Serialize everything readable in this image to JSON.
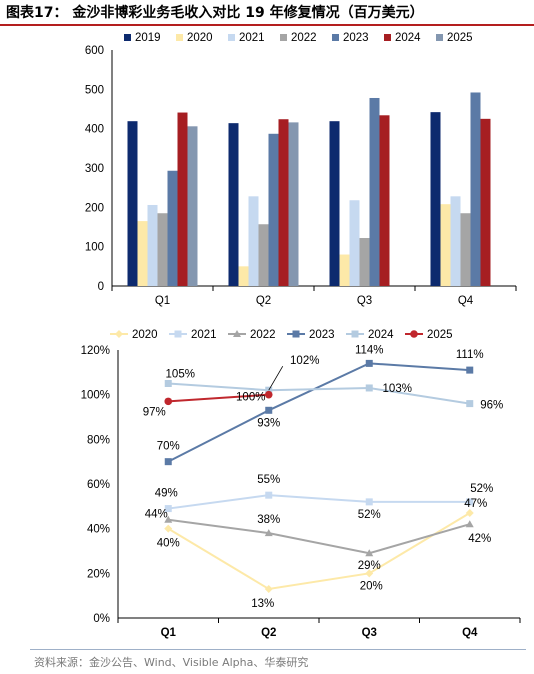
{
  "title": "图表17： 金沙非博彩业务毛收入对比 19 年修复情况（百万美元）",
  "source": "资料来源：金沙公告、Wind、Visible Alpha、华泰研究",
  "chart_data": [
    {
      "type": "bar",
      "categories": [
        "Q1",
        "Q2",
        "Q3",
        "Q4"
      ],
      "ylim": [
        0,
        600
      ],
      "yticks": [
        0,
        100,
        200,
        300,
        400,
        500,
        600
      ],
      "legend_position": "top",
      "grid": false,
      "series": [
        {
          "name": "2019",
          "color": "#0d2a6e",
          "values": [
            419,
            414,
            419,
            442
          ]
        },
        {
          "name": "2020",
          "color": "#fde9a8",
          "values": [
            165,
            50,
            80,
            208
          ]
        },
        {
          "name": "2021",
          "color": "#c6d9f0",
          "values": [
            206,
            228,
            218,
            228
          ]
        },
        {
          "name": "2022",
          "color": "#a5a5a5",
          "values": [
            185,
            157,
            122,
            185
          ]
        },
        {
          "name": "2023",
          "color": "#5b7aa6",
          "values": [
            293,
            387,
            478,
            492
          ]
        },
        {
          "name": "2024",
          "color": "#a61e22",
          "values": [
            441,
            424,
            434,
            425
          ]
        },
        {
          "name": "2025",
          "color": "#8497b0",
          "values": [
            406,
            416,
            null,
            null
          ]
        }
      ]
    },
    {
      "type": "line",
      "categories": [
        "Q1",
        "Q2",
        "Q3",
        "Q4"
      ],
      "ylim": [
        0,
        120
      ],
      "yticks": [
        0,
        20,
        40,
        60,
        80,
        100,
        120
      ],
      "ytick_labels": [
        "0%",
        "20%",
        "40%",
        "60%",
        "80%",
        "100%",
        "120%"
      ],
      "legend_position": "top",
      "grid": false,
      "series": [
        {
          "name": "2020",
          "color": "#fde9a8",
          "marker": "diamond",
          "values": [
            40,
            13,
            20,
            47
          ],
          "labels": [
            "40%",
            "13%",
            "20%",
            "47%"
          ]
        },
        {
          "name": "2021",
          "color": "#c6d9f0",
          "marker": "square",
          "values": [
            49,
            55,
            52,
            52
          ],
          "labels": [
            "49%",
            "55%",
            "52%",
            "52%"
          ]
        },
        {
          "name": "2022",
          "color": "#a5a5a5",
          "marker": "triangle",
          "values": [
            44,
            38,
            29,
            42
          ],
          "labels": [
            "44%",
            "38%",
            "29%",
            "42%"
          ]
        },
        {
          "name": "2023",
          "color": "#5b7aa6",
          "marker": "square",
          "values": [
            70,
            93,
            114,
            111
          ],
          "labels": [
            "70%",
            "93%",
            "114%",
            "111%"
          ]
        },
        {
          "name": "2024",
          "color": "#b4cbe0",
          "marker": "square",
          "values": [
            105,
            102,
            103,
            96
          ],
          "labels": [
            "105%",
            "102%",
            "103%",
            "96%"
          ]
        },
        {
          "name": "2025",
          "color": "#c0272d",
          "marker": "circle",
          "values": [
            97,
            100,
            null,
            null
          ],
          "labels": [
            "97%",
            "100%",
            "",
            ""
          ]
        }
      ]
    }
  ]
}
